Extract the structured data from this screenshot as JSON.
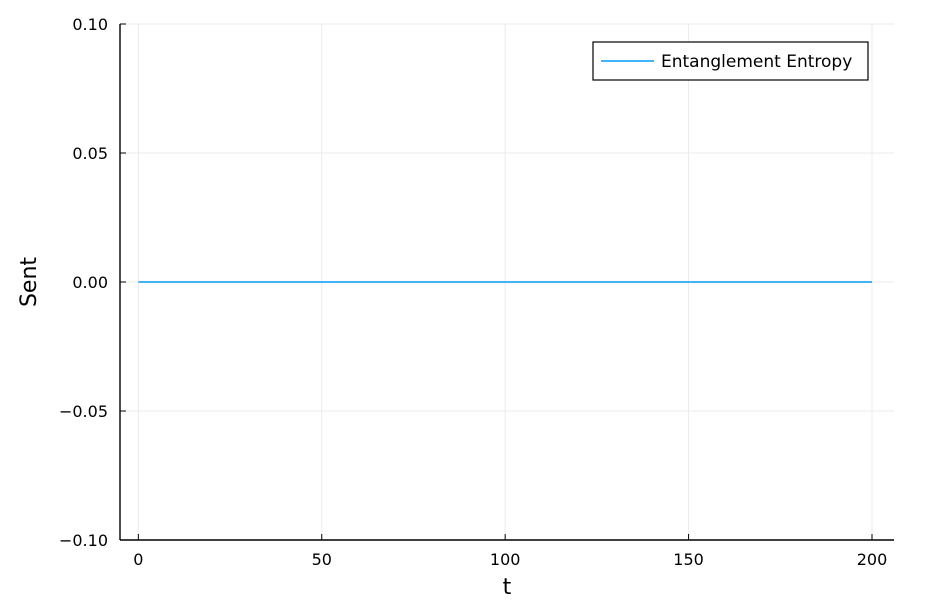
{
  "chart_data": {
    "type": "line",
    "xlabel": "t",
    "ylabel": "Sent",
    "xlim": [
      -5,
      206
    ],
    "ylim": [
      -0.1,
      0.1
    ],
    "x_ticks": [
      0,
      50,
      100,
      150,
      200
    ],
    "x_tick_labels": [
      "0",
      "50",
      "100",
      "150",
      "200"
    ],
    "y_ticks": [
      -0.1,
      -0.05,
      0.0,
      0.05,
      0.1
    ],
    "y_tick_labels": [
      "−0.10",
      "−0.05",
      "0.00",
      "0.05",
      "0.10"
    ],
    "grid": true,
    "legend_position": "top-right",
    "series": [
      {
        "name": "Entanglement Entropy",
        "color": "#009AFA",
        "x": [
          0,
          200
        ],
        "y": [
          0.0,
          0.0
        ]
      }
    ]
  },
  "colors": {
    "grid": "#ebebeb",
    "axis": "#000000",
    "background": "#ffffff"
  }
}
